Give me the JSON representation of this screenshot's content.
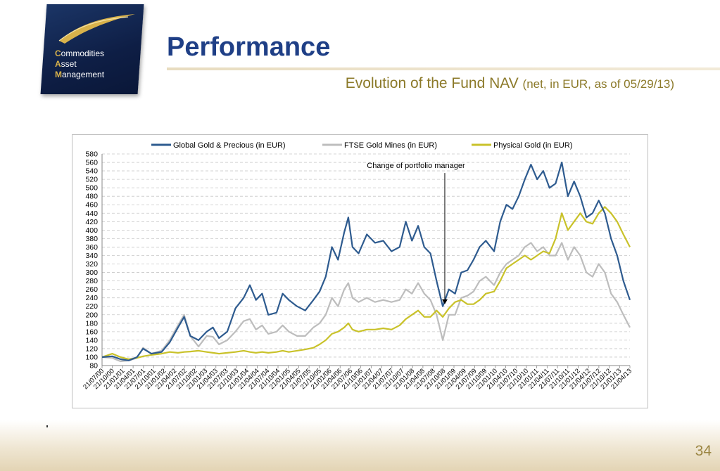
{
  "logo": {
    "initials": [
      "C",
      "A",
      "M"
    ],
    "lines": [
      "ommodities",
      "sset",
      "anagement"
    ]
  },
  "header": {
    "title": "Performance",
    "subtitle_main": "Evolution of the Fund NAV",
    "subtitle_note": "(net, in EUR, as of 05/29/13)"
  },
  "colors": {
    "navy": "#1f3f86",
    "gold_text": "#8c7a2a",
    "series_blue": "#2e5b8f",
    "series_grey": "#bdbdbd",
    "series_yellow": "#c9c22a"
  },
  "chart_data": {
    "type": "line",
    "title": "",
    "xlabel": "",
    "ylabel": "",
    "ylim": [
      80,
      580
    ],
    "yticks": [
      80,
      100,
      120,
      140,
      160,
      180,
      200,
      220,
      240,
      260,
      280,
      300,
      320,
      340,
      360,
      380,
      400,
      420,
      440,
      460,
      480,
      500,
      520,
      540,
      560,
      580
    ],
    "grid": "horizontal dashed",
    "legend": "top",
    "x_tick_labels": [
      "21/07/00",
      "21/10/00",
      "21/01/01",
      "21/04/01",
      "21/07/01",
      "21/10/01",
      "21/01/02",
      "21/04/02",
      "21/07/02",
      "21/10/02",
      "21/01/03",
      "21/04/03",
      "21/07/03",
      "21/10/03",
      "21/01/04",
      "21/04/04",
      "21/07/04",
      "21/10/04",
      "21/01/05",
      "21/04/05",
      "21/07/05",
      "21/10/05",
      "21/01/06",
      "21/04/06",
      "21/07/06",
      "21/10/06",
      "21/01/07",
      "21/04/07",
      "21/07/07",
      "21/10/07",
      "21/01/08",
      "21/04/08",
      "21/07/08",
      "21/10/08",
      "21/01/09",
      "21/04/09",
      "21/07/09",
      "21/10/09",
      "21/01/10",
      "21/04/10",
      "21/07/10",
      "21/10/10",
      "21/01/11",
      "21/04/11",
      "21/07/11",
      "21/10/11",
      "21/01/12",
      "21/04/12",
      "21/07/12",
      "21/10/12",
      "21/01/13",
      "21/04/13"
    ],
    "x_years": [
      2000.55,
      2013.41
    ],
    "series": [
      {
        "name": "Global Gold & Precious (in EUR)",
        "color": "#2e5b8f",
        "points": [
          [
            2000.55,
            100
          ],
          [
            2000.8,
            102
          ],
          [
            2001.0,
            95
          ],
          [
            2001.2,
            92
          ],
          [
            2001.4,
            100
          ],
          [
            2001.55,
            120
          ],
          [
            2001.75,
            108
          ],
          [
            2002.0,
            112
          ],
          [
            2002.2,
            135
          ],
          [
            2002.4,
            170
          ],
          [
            2002.55,
            195
          ],
          [
            2002.7,
            150
          ],
          [
            2002.9,
            140
          ],
          [
            2003.1,
            160
          ],
          [
            2003.25,
            170
          ],
          [
            2003.4,
            145
          ],
          [
            2003.6,
            160
          ],
          [
            2003.8,
            215
          ],
          [
            2004.0,
            240
          ],
          [
            2004.15,
            270
          ],
          [
            2004.3,
            235
          ],
          [
            2004.45,
            250
          ],
          [
            2004.6,
            200
          ],
          [
            2004.8,
            205
          ],
          [
            2004.95,
            250
          ],
          [
            2005.1,
            235
          ],
          [
            2005.3,
            220
          ],
          [
            2005.5,
            210
          ],
          [
            2005.7,
            235
          ],
          [
            2005.85,
            255
          ],
          [
            2006.0,
            290
          ],
          [
            2006.15,
            360
          ],
          [
            2006.3,
            330
          ],
          [
            2006.45,
            395
          ],
          [
            2006.55,
            430
          ],
          [
            2006.65,
            360
          ],
          [
            2006.8,
            345
          ],
          [
            2007.0,
            390
          ],
          [
            2007.2,
            370
          ],
          [
            2007.4,
            375
          ],
          [
            2007.6,
            350
          ],
          [
            2007.8,
            360
          ],
          [
            2007.95,
            420
          ],
          [
            2008.1,
            375
          ],
          [
            2008.25,
            410
          ],
          [
            2008.4,
            360
          ],
          [
            2008.55,
            345
          ],
          [
            2008.7,
            280
          ],
          [
            2008.85,
            220
          ],
          [
            2009.0,
            260
          ],
          [
            2009.15,
            250
          ],
          [
            2009.3,
            300
          ],
          [
            2009.45,
            305
          ],
          [
            2009.6,
            330
          ],
          [
            2009.75,
            360
          ],
          [
            2009.9,
            375
          ],
          [
            2010.1,
            350
          ],
          [
            2010.25,
            420
          ],
          [
            2010.4,
            460
          ],
          [
            2010.55,
            450
          ],
          [
            2010.7,
            480
          ],
          [
            2010.85,
            520
          ],
          [
            2011.0,
            555
          ],
          [
            2011.15,
            520
          ],
          [
            2011.3,
            540
          ],
          [
            2011.45,
            500
          ],
          [
            2011.6,
            510
          ],
          [
            2011.75,
            560
          ],
          [
            2011.9,
            480
          ],
          [
            2012.05,
            515
          ],
          [
            2012.2,
            480
          ],
          [
            2012.35,
            430
          ],
          [
            2012.5,
            440
          ],
          [
            2012.65,
            470
          ],
          [
            2012.8,
            440
          ],
          [
            2012.95,
            380
          ],
          [
            2013.1,
            340
          ],
          [
            2013.25,
            280
          ],
          [
            2013.41,
            235
          ]
        ]
      },
      {
        "name": "FTSE Gold Mines (in EUR)",
        "color": "#bdbdbd",
        "points": [
          [
            2000.55,
            100
          ],
          [
            2000.8,
            98
          ],
          [
            2001.0,
            90
          ],
          [
            2001.2,
            92
          ],
          [
            2001.4,
            98
          ],
          [
            2001.55,
            122
          ],
          [
            2001.75,
            108
          ],
          [
            2002.0,
            115
          ],
          [
            2002.2,
            140
          ],
          [
            2002.4,
            175
          ],
          [
            2002.55,
            200
          ],
          [
            2002.7,
            150
          ],
          [
            2002.9,
            125
          ],
          [
            2003.1,
            150
          ],
          [
            2003.25,
            148
          ],
          [
            2003.4,
            130
          ],
          [
            2003.6,
            140
          ],
          [
            2003.8,
            160
          ],
          [
            2004.0,
            185
          ],
          [
            2004.15,
            190
          ],
          [
            2004.3,
            165
          ],
          [
            2004.45,
            175
          ],
          [
            2004.6,
            155
          ],
          [
            2004.8,
            160
          ],
          [
            2004.95,
            175
          ],
          [
            2005.1,
            160
          ],
          [
            2005.3,
            150
          ],
          [
            2005.5,
            150
          ],
          [
            2005.7,
            170
          ],
          [
            2005.85,
            180
          ],
          [
            2006.0,
            200
          ],
          [
            2006.15,
            240
          ],
          [
            2006.3,
            220
          ],
          [
            2006.45,
            260
          ],
          [
            2006.55,
            275
          ],
          [
            2006.65,
            240
          ],
          [
            2006.8,
            230
          ],
          [
            2007.0,
            240
          ],
          [
            2007.2,
            230
          ],
          [
            2007.4,
            235
          ],
          [
            2007.6,
            230
          ],
          [
            2007.8,
            235
          ],
          [
            2007.95,
            260
          ],
          [
            2008.1,
            250
          ],
          [
            2008.25,
            275
          ],
          [
            2008.4,
            250
          ],
          [
            2008.55,
            235
          ],
          [
            2008.7,
            200
          ],
          [
            2008.85,
            140
          ],
          [
            2009.0,
            200
          ],
          [
            2009.15,
            200
          ],
          [
            2009.3,
            240
          ],
          [
            2009.45,
            245
          ],
          [
            2009.6,
            255
          ],
          [
            2009.75,
            280
          ],
          [
            2009.9,
            290
          ],
          [
            2010.1,
            270
          ],
          [
            2010.25,
            300
          ],
          [
            2010.4,
            320
          ],
          [
            2010.55,
            330
          ],
          [
            2010.7,
            340
          ],
          [
            2010.85,
            360
          ],
          [
            2011.0,
            370
          ],
          [
            2011.15,
            350
          ],
          [
            2011.3,
            360
          ],
          [
            2011.45,
            340
          ],
          [
            2011.6,
            340
          ],
          [
            2011.75,
            370
          ],
          [
            2011.9,
            330
          ],
          [
            2012.05,
            360
          ],
          [
            2012.2,
            340
          ],
          [
            2012.35,
            300
          ],
          [
            2012.5,
            290
          ],
          [
            2012.65,
            320
          ],
          [
            2012.8,
            300
          ],
          [
            2012.95,
            250
          ],
          [
            2013.1,
            230
          ],
          [
            2013.25,
            200
          ],
          [
            2013.41,
            170
          ]
        ]
      },
      {
        "name": "Physical Gold (in EUR)",
        "color": "#c9c22a",
        "points": [
          [
            2000.55,
            100
          ],
          [
            2000.8,
            108
          ],
          [
            2001.0,
            100
          ],
          [
            2001.2,
            95
          ],
          [
            2001.4,
            98
          ],
          [
            2001.55,
            102
          ],
          [
            2001.75,
            105
          ],
          [
            2002.0,
            108
          ],
          [
            2002.2,
            112
          ],
          [
            2002.4,
            110
          ],
          [
            2002.55,
            112
          ],
          [
            2002.7,
            113
          ],
          [
            2002.9,
            115
          ],
          [
            2003.1,
            112
          ],
          [
            2003.25,
            110
          ],
          [
            2003.4,
            108
          ],
          [
            2003.6,
            110
          ],
          [
            2003.8,
            112
          ],
          [
            2004.0,
            115
          ],
          [
            2004.15,
            112
          ],
          [
            2004.3,
            110
          ],
          [
            2004.45,
            112
          ],
          [
            2004.6,
            110
          ],
          [
            2004.8,
            112
          ],
          [
            2004.95,
            115
          ],
          [
            2005.1,
            112
          ],
          [
            2005.3,
            115
          ],
          [
            2005.5,
            118
          ],
          [
            2005.7,
            122
          ],
          [
            2005.85,
            130
          ],
          [
            2006.0,
            140
          ],
          [
            2006.15,
            155
          ],
          [
            2006.3,
            160
          ],
          [
            2006.45,
            170
          ],
          [
            2006.55,
            180
          ],
          [
            2006.65,
            165
          ],
          [
            2006.8,
            160
          ],
          [
            2007.0,
            165
          ],
          [
            2007.2,
            165
          ],
          [
            2007.4,
            168
          ],
          [
            2007.6,
            165
          ],
          [
            2007.8,
            175
          ],
          [
            2007.95,
            190
          ],
          [
            2008.1,
            200
          ],
          [
            2008.25,
            210
          ],
          [
            2008.4,
            195
          ],
          [
            2008.55,
            195
          ],
          [
            2008.7,
            210
          ],
          [
            2008.85,
            195
          ],
          [
            2009.0,
            215
          ],
          [
            2009.15,
            230
          ],
          [
            2009.3,
            235
          ],
          [
            2009.45,
            225
          ],
          [
            2009.6,
            225
          ],
          [
            2009.75,
            235
          ],
          [
            2009.9,
            250
          ],
          [
            2010.1,
            255
          ],
          [
            2010.25,
            280
          ],
          [
            2010.4,
            310
          ],
          [
            2010.55,
            320
          ],
          [
            2010.7,
            330
          ],
          [
            2010.85,
            340
          ],
          [
            2011.0,
            330
          ],
          [
            2011.15,
            340
          ],
          [
            2011.3,
            350
          ],
          [
            2011.45,
            345
          ],
          [
            2011.6,
            380
          ],
          [
            2011.75,
            440
          ],
          [
            2011.9,
            400
          ],
          [
            2012.05,
            420
          ],
          [
            2012.2,
            440
          ],
          [
            2012.35,
            420
          ],
          [
            2012.5,
            415
          ],
          [
            2012.65,
            440
          ],
          [
            2012.8,
            455
          ],
          [
            2012.95,
            440
          ],
          [
            2013.1,
            420
          ],
          [
            2013.25,
            390
          ],
          [
            2013.41,
            360
          ]
        ]
      }
    ],
    "annotation": {
      "text": "Change of portfolio manager",
      "x": 2008.9,
      "y_from": 535,
      "y_to": 225
    }
  },
  "footer": {
    "page_number": "34"
  }
}
